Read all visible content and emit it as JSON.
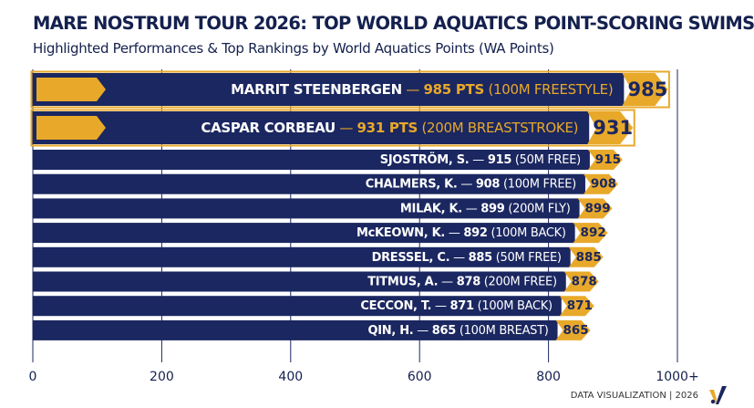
{
  "title": "MARE NOSTRUM TOUR 2026: TOP WORLD AQUATICS POINT-SCORING SWIMS",
  "subtitle": "Highlighted Performances & Top Rankings by World Aquatics Points (WA Points)",
  "footer": "DATA VISUALIZATION | 2026",
  "colors": {
    "navy": "#1b2760",
    "gold": "#e8a92a",
    "text": "#14204e",
    "grid": "#1b2760"
  },
  "chart_data": {
    "type": "bar",
    "orientation": "horizontal",
    "xlim": [
      0,
      1000
    ],
    "x_ticks": [
      0,
      200,
      400,
      600,
      800,
      1000
    ],
    "x_tick_labels": [
      "0",
      "200",
      "400",
      "600",
      "800",
      "1000+"
    ],
    "grid": true,
    "bars": [
      {
        "name": "MARRIT STEENBERGEN",
        "sep": " — ",
        "pts": "985 PTS",
        "event": " (100M FREESTYLE)",
        "value": 985,
        "badge": "985",
        "highlight": true
      },
      {
        "name": "CASPAR CORBEAU",
        "sep": " — ",
        "pts": "931 PTS",
        "event": " (200M BREASTSTROKE)",
        "value": 931,
        "badge": "931",
        "highlight": true
      },
      {
        "name": "SJOSTRÖM, S.",
        "sep": " — ",
        "pts": "915",
        "event": " (50M FREE)",
        "value": 915,
        "badge": "915",
        "highlight": false
      },
      {
        "name": "CHALMERS, K.",
        "sep": " — ",
        "pts": "908",
        "event": " (100M FREE)",
        "value": 908,
        "badge": "908",
        "highlight": false
      },
      {
        "name": "MILAK, K.",
        "sep": " — ",
        "pts": "899",
        "event": " (200M FLY)",
        "value": 899,
        "badge": "899",
        "highlight": false
      },
      {
        "name": "McKEOWN, K.",
        "sep": " — ",
        "pts": "892",
        "event": " (100M BACK)",
        "value": 892,
        "badge": "892",
        "highlight": false
      },
      {
        "name": "DRESSEL, C.",
        "sep": " — ",
        "pts": "885",
        "event": " (50M FREE)",
        "value": 885,
        "badge": "885",
        "highlight": false
      },
      {
        "name": "TITMUS, A.",
        "sep": " — ",
        "pts": "878",
        "event": " (200M FREE)",
        "value": 878,
        "badge": "878",
        "highlight": false
      },
      {
        "name": "CECCON, T.",
        "sep": " — ",
        "pts": "871",
        "event": " (100M BACK)",
        "value": 871,
        "badge": "871",
        "highlight": false
      },
      {
        "name": "QIN, H.",
        "sep": " — ",
        "pts": "865",
        "event": " (100M BREAST)",
        "value": 865,
        "badge": "865",
        "highlight": false
      }
    ]
  }
}
